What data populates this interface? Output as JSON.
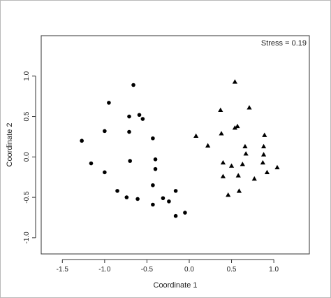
{
  "chart_data": {
    "type": "scatter",
    "title": "",
    "xlabel": "Coordinate 1",
    "ylabel": "Coordinate 2",
    "annotation": "Stress = 0.19",
    "xlim": [
      -1.75,
      1.42
    ],
    "ylim": [
      -1.2,
      1.5
    ],
    "x_ticks": [
      -1.5,
      -1.0,
      -0.5,
      0.0,
      0.5,
      1.0
    ],
    "x_tick_labels": [
      "-1.5",
      "-1.0",
      "-0.5",
      "0.0",
      "0.5",
      "1.0"
    ],
    "y_ticks": [
      -1.0,
      -0.5,
      0.0,
      0.5,
      1.0
    ],
    "y_tick_labels": [
      "-1.0",
      "-0.5",
      "0.0",
      "0.5",
      "1.0"
    ],
    "grid": false,
    "legend": "none",
    "series": [
      {
        "marker": "circle",
        "color": "#000000",
        "points": [
          [
            -1.27,
            0.2
          ],
          [
            -1.16,
            -0.08
          ],
          [
            -1.0,
            0.32
          ],
          [
            -1.0,
            -0.19
          ],
          [
            -0.95,
            0.67
          ],
          [
            -0.85,
            -0.42
          ],
          [
            -0.74,
            -0.5
          ],
          [
            -0.71,
            0.5
          ],
          [
            -0.71,
            0.31
          ],
          [
            -0.7,
            -0.05
          ],
          [
            -0.66,
            0.89
          ],
          [
            -0.61,
            -0.52
          ],
          [
            -0.59,
            0.52
          ],
          [
            -0.55,
            0.47
          ],
          [
            -0.43,
            0.23
          ],
          [
            -0.43,
            -0.35
          ],
          [
            -0.43,
            -0.59
          ],
          [
            -0.4,
            -0.03
          ],
          [
            -0.4,
            -0.15
          ],
          [
            -0.31,
            -0.51
          ],
          [
            -0.24,
            -0.55
          ],
          [
            -0.16,
            -0.42
          ],
          [
            -0.16,
            -0.73
          ],
          [
            -0.05,
            -0.69
          ]
        ]
      },
      {
        "marker": "triangle",
        "color": "#000000",
        "points": [
          [
            0.08,
            0.26
          ],
          [
            0.22,
            0.14
          ],
          [
            0.37,
            0.58
          ],
          [
            0.38,
            0.29
          ],
          [
            0.4,
            -0.07
          ],
          [
            0.4,
            -0.24
          ],
          [
            0.46,
            -0.47
          ],
          [
            0.5,
            -0.11
          ],
          [
            0.54,
            0.93
          ],
          [
            0.54,
            0.36
          ],
          [
            0.57,
            0.38
          ],
          [
            0.58,
            -0.23
          ],
          [
            0.59,
            -0.42
          ],
          [
            0.63,
            -0.09
          ],
          [
            0.66,
            0.13
          ],
          [
            0.67,
            0.04
          ],
          [
            0.71,
            0.61
          ],
          [
            0.77,
            -0.27
          ],
          [
            0.87,
            -0.07
          ],
          [
            0.88,
            0.03
          ],
          [
            0.88,
            0.13
          ],
          [
            0.89,
            0.27
          ],
          [
            0.92,
            -0.19
          ],
          [
            1.04,
            -0.13
          ]
        ]
      }
    ]
  }
}
